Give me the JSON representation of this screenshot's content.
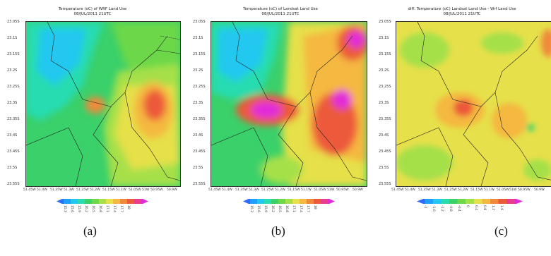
{
  "panels": [
    {
      "id": "a",
      "title1": "Temperature (oC) of WRF Land Use",
      "title2": "08/JUL/2011 21UTC",
      "caption": "(a)",
      "yticks": [
        "23.05S",
        "23.1S",
        "23.15S",
        "23.2S",
        "23.25S",
        "23.3S",
        "23.35S",
        "23.4S",
        "23.45S",
        "23.5S",
        "23.55S"
      ],
      "xticks": [
        "51.45W",
        "51.4W",
        "51.35W",
        "51.3W",
        "51.25W",
        "51.2W",
        "51.15W",
        "51.1W",
        "51.05W",
        "51W",
        "50.95W",
        "50.9W"
      ],
      "colorbar_labels": [
        "15.3",
        "15.6",
        "15.9",
        "16.2",
        "16.5",
        "16.8",
        "17.1",
        "17.4",
        "17.7",
        "18"
      ],
      "colorbar_colors": [
        "#2f6bff",
        "#1fa0ff",
        "#22c8f0",
        "#26dcb0",
        "#3ad06a",
        "#6cd84a",
        "#a6e048",
        "#e6e04a",
        "#f5b840",
        "#f08a3a",
        "#ec5a3a",
        "#e83c8c",
        "#e22ad8"
      ]
    },
    {
      "id": "b",
      "title1": "Temperature (oC) of Landsat Land Use",
      "title2": "08/JUL/2011 21UTC",
      "caption": "(b)",
      "yticks": [
        "23.05S",
        "23.1S",
        "23.15S",
        "23.2S",
        "23.25S",
        "23.3S",
        "23.35S",
        "23.4S",
        "23.45S",
        "23.5S",
        "23.55S"
      ],
      "xticks": [
        "51.45W",
        "51.4W",
        "51.35W",
        "51.3W",
        "51.25W",
        "51.2W",
        "51.15W",
        "51.1W",
        "51.05W",
        "51W",
        "50.95W",
        "50.9W"
      ],
      "colorbar_labels": [
        "15.3",
        "15.6",
        "15.9",
        "16.2",
        "16.5",
        "16.8",
        "17.1",
        "17.4",
        "17.7",
        "18"
      ],
      "colorbar_colors": [
        "#2f6bff",
        "#1fa0ff",
        "#22c8f0",
        "#26dcb0",
        "#3ad06a",
        "#6cd84a",
        "#a6e048",
        "#e6e04a",
        "#f5b840",
        "#f08a3a",
        "#ec5a3a",
        "#e83c8c",
        "#e22ad8"
      ]
    },
    {
      "id": "c",
      "title1": "diff. Temperature (oC) Landsat Land Use - Wrf Land Use",
      "title2": "08/JUL/2011 21UTC",
      "caption": "(c)",
      "yticks": [
        "23.05S",
        "23.1S",
        "23.15S",
        "23.2S",
        "23.25S",
        "23.3S",
        "23.35S",
        "23.4S",
        "23.45S",
        "23.5S",
        "23.55S"
      ],
      "xticks": [
        "51.45W",
        "51.4W",
        "51.35W",
        "51.3W",
        "51.25W",
        "51.2W",
        "51.15W",
        "51.1W",
        "51.05W",
        "51W",
        "50.95W",
        "50.9W"
      ],
      "colorbar_labels": [
        "-2",
        "-1.6",
        "-1.2",
        "-0.8",
        "-0.4",
        "0",
        "0.4",
        "0.8",
        "1.2",
        "1.6"
      ],
      "colorbar_colors": [
        "#2f6bff",
        "#1fa0ff",
        "#22c8f0",
        "#26dcb0",
        "#3ad06a",
        "#6cd84a",
        "#a6e048",
        "#e6e04a",
        "#f5b840",
        "#f08a3a",
        "#ec5a3a",
        "#e83c8c",
        "#e22ad8"
      ]
    }
  ]
}
